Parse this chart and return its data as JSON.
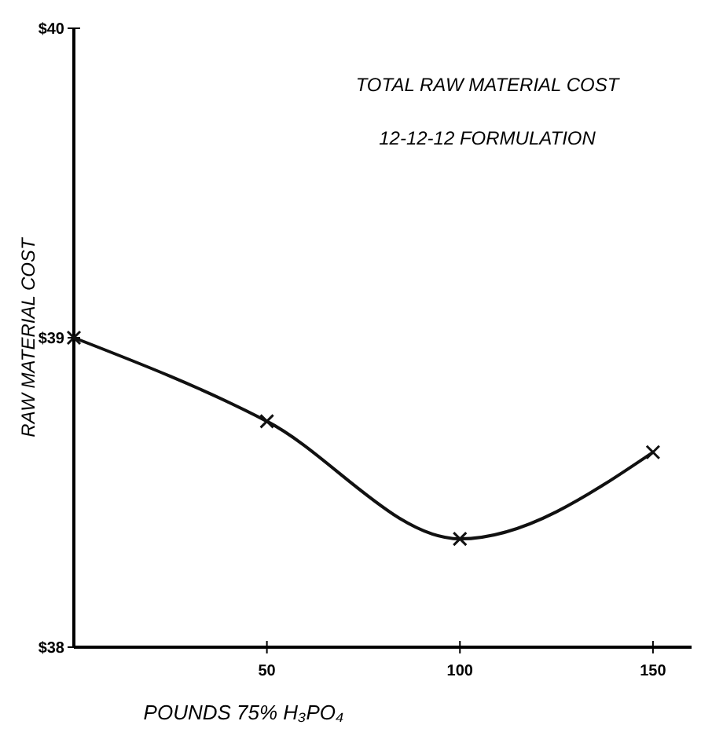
{
  "chart_data": {
    "type": "line",
    "title": "TOTAL RAW MATERIAL COST",
    "subtitle": "12-12-12 FORMULATION",
    "xlabel": "POUNDS 75% H₃PO₄",
    "ylabel": "RAW MATERIAL COST",
    "x": [
      0,
      50,
      100,
      150
    ],
    "values": [
      39.0,
      38.73,
      38.35,
      38.63
    ],
    "color": "#111111",
    "marker": "cross",
    "line_style": "solid",
    "grid": false,
    "xlim": [
      0,
      160
    ],
    "xticks": [
      50,
      100,
      150
    ],
    "ylim": [
      38,
      40
    ],
    "yticks": [
      {
        "value": 38,
        "label": "$38"
      },
      {
        "value": 39,
        "label": "$39"
      },
      {
        "value": 40,
        "label": "$40"
      }
    ]
  }
}
